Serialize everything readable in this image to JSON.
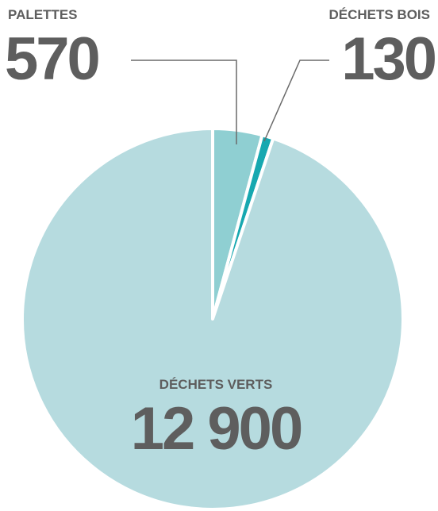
{
  "chart_data": {
    "type": "pie",
    "categories": [
      "PALETTES",
      "DÉCHETS BOIS",
      "DÉCHETS VERTS"
    ],
    "values": [
      570,
      130,
      12900
    ],
    "value_labels": [
      "570",
      "130",
      "12 900"
    ],
    "colors": [
      "#8fcfd2",
      "#17a8b0",
      "#b6dbdf"
    ]
  }
}
